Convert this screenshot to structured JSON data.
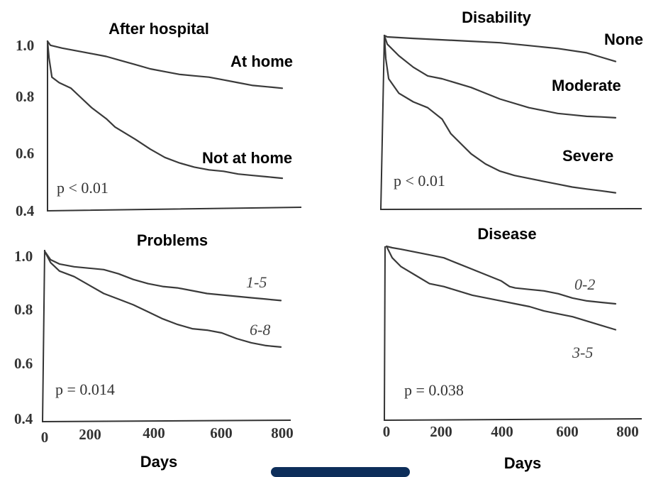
{
  "chart_data": [
    {
      "type": "line",
      "title": "After hospital",
      "xlabel": "Days",
      "ylabel": "",
      "xlim": [
        0,
        800
      ],
      "ylim": [
        0.4,
        1.0
      ],
      "y_ticks": [
        "1.0",
        "0.8",
        "0.6",
        "0.4"
      ],
      "x_ticks": [],
      "annotation": "p < 0.01",
      "series": [
        {
          "name": "At home",
          "x": [
            0,
            10,
            50,
            100,
            150,
            200,
            250,
            300,
            350,
            400,
            450,
            500,
            550,
            600,
            650,
            700,
            750,
            800
          ],
          "y": [
            1.0,
            0.985,
            0.975,
            0.965,
            0.955,
            0.945,
            0.93,
            0.915,
            0.9,
            0.89,
            0.88,
            0.875,
            0.87,
            0.86,
            0.85,
            0.84,
            0.835,
            0.83
          ]
        },
        {
          "name": "Not at home",
          "x": [
            0,
            5,
            15,
            40,
            80,
            110,
            150,
            200,
            230,
            300,
            350,
            400,
            450,
            500,
            550,
            600,
            650,
            700,
            750,
            800
          ],
          "y": [
            1.0,
            0.94,
            0.87,
            0.85,
            0.83,
            0.8,
            0.76,
            0.72,
            0.69,
            0.645,
            0.61,
            0.58,
            0.56,
            0.545,
            0.535,
            0.53,
            0.52,
            0.515,
            0.51,
            0.505
          ]
        }
      ]
    },
    {
      "type": "line",
      "title": "Disability",
      "xlabel": "Days",
      "ylabel": "",
      "xlim": [
        0,
        800
      ],
      "ylim": [
        0.4,
        1.0
      ],
      "y_ticks": [],
      "x_ticks": [],
      "annotation": "p < 0.01",
      "series": [
        {
          "name": "None",
          "x": [
            0,
            10,
            100,
            200,
            300,
            400,
            500,
            600,
            700,
            750,
            800
          ],
          "y": [
            1.0,
            0.995,
            0.99,
            0.985,
            0.98,
            0.975,
            0.965,
            0.955,
            0.94,
            0.925,
            0.91
          ]
        },
        {
          "name": "Moderate",
          "x": [
            0,
            10,
            50,
            100,
            150,
            200,
            300,
            400,
            500,
            550,
            600,
            650,
            700,
            750,
            800
          ],
          "y": [
            1.0,
            0.97,
            0.93,
            0.89,
            0.86,
            0.85,
            0.82,
            0.78,
            0.75,
            0.74,
            0.73,
            0.725,
            0.72,
            0.718,
            0.715
          ]
        },
        {
          "name": "Severe",
          "x": [
            0,
            5,
            15,
            50,
            100,
            150,
            200,
            230,
            270,
            300,
            350,
            400,
            450,
            500,
            550,
            600,
            650,
            700,
            750,
            800
          ],
          "y": [
            1.0,
            0.92,
            0.85,
            0.8,
            0.77,
            0.75,
            0.71,
            0.66,
            0.62,
            0.59,
            0.555,
            0.53,
            0.515,
            0.505,
            0.495,
            0.485,
            0.475,
            0.468,
            0.462,
            0.455
          ]
        }
      ]
    },
    {
      "type": "line",
      "title": "Problems",
      "xlabel": "Days",
      "ylabel": "",
      "xlim": [
        0,
        800
      ],
      "ylim": [
        0.4,
        1.0
      ],
      "y_ticks": [
        "1.0",
        "0.8",
        "0.6",
        "0.4"
      ],
      "x_ticks": [
        "0",
        "200",
        "400",
        "600",
        "800"
      ],
      "annotation": "p = 0.014",
      "series": [
        {
          "name": "1-5",
          "x": [
            0,
            20,
            50,
            100,
            150,
            200,
            250,
            300,
            350,
            400,
            450,
            500,
            550,
            600,
            650,
            700,
            750,
            800
          ],
          "y": [
            1.0,
            0.97,
            0.955,
            0.945,
            0.94,
            0.935,
            0.92,
            0.9,
            0.885,
            0.875,
            0.87,
            0.86,
            0.85,
            0.845,
            0.84,
            0.835,
            0.83,
            0.825
          ]
        },
        {
          "name": "6-8",
          "x": [
            0,
            20,
            50,
            100,
            150,
            200,
            250,
            300,
            350,
            400,
            450,
            500,
            550,
            600,
            650,
            700,
            750,
            800
          ],
          "y": [
            1.0,
            0.96,
            0.93,
            0.91,
            0.88,
            0.85,
            0.83,
            0.81,
            0.785,
            0.76,
            0.74,
            0.725,
            0.72,
            0.71,
            0.69,
            0.675,
            0.665,
            0.66
          ]
        }
      ]
    },
    {
      "type": "line",
      "title": "Disease",
      "xlabel": "Days",
      "ylabel": "",
      "xlim": [
        0,
        800
      ],
      "ylim": [
        0.4,
        1.0
      ],
      "y_ticks": [],
      "x_ticks": [
        "0",
        "200",
        "400",
        "600",
        "800"
      ],
      "annotation": "p = 0.038",
      "series": [
        {
          "name": "0-2",
          "x": [
            0,
            20,
            50,
            100,
            150,
            200,
            250,
            300,
            350,
            400,
            430,
            450,
            500,
            550,
            600,
            650,
            700,
            750,
            800
          ],
          "y": [
            1.0,
            0.995,
            0.99,
            0.98,
            0.97,
            0.96,
            0.94,
            0.92,
            0.9,
            0.88,
            0.86,
            0.855,
            0.85,
            0.845,
            0.835,
            0.82,
            0.81,
            0.805,
            0.8
          ]
        },
        {
          "name": "3-5",
          "x": [
            0,
            20,
            50,
            100,
            150,
            200,
            250,
            300,
            350,
            400,
            450,
            500,
            550,
            600,
            650,
            700,
            750,
            800
          ],
          "y": [
            1.0,
            0.96,
            0.93,
            0.9,
            0.87,
            0.86,
            0.845,
            0.83,
            0.82,
            0.81,
            0.8,
            0.79,
            0.775,
            0.765,
            0.755,
            0.74,
            0.725,
            0.71
          ]
        }
      ]
    }
  ]
}
